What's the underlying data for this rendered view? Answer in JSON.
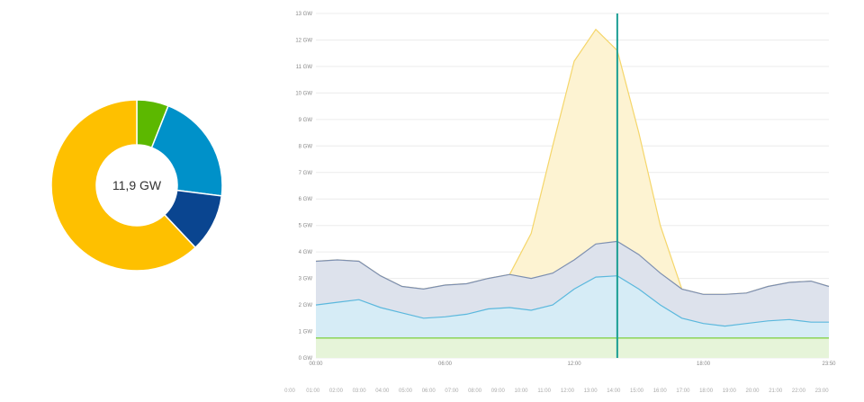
{
  "donut": {
    "total_label": "11,9 GW",
    "slices": [
      {
        "name": "green",
        "value": 6,
        "color": "#5cb800"
      },
      {
        "name": "blue",
        "value": 21,
        "color": "#0091c9"
      },
      {
        "name": "navy",
        "value": 11,
        "color": "#0a4590"
      },
      {
        "name": "yellow",
        "value": 62,
        "color": "#fec000"
      }
    ]
  },
  "chart_data": {
    "type": "area",
    "y_ticks": [
      "0 GW",
      "1 GW",
      "2 GW",
      "3 GW",
      "4 GW",
      "5 GW",
      "6 GW",
      "7 GW",
      "8 GW",
      "9 GW",
      "10 GW",
      "11 GW",
      "12 GW",
      "13 GW"
    ],
    "ylim": [
      0,
      13
    ],
    "x_ticks": [
      "00:00",
      "06:00",
      "12:00",
      "18:00",
      "23:50"
    ],
    "x_hours": [
      0,
      1,
      2,
      3,
      4,
      5,
      6,
      7,
      8,
      9,
      10,
      11,
      12,
      13,
      14,
      15,
      16,
      17,
      18,
      19,
      20,
      21,
      22,
      23,
      23.83
    ],
    "cursor_hour": 14,
    "series": [
      {
        "name": "green",
        "color": "#7ccf3a",
        "fill": "#e6f4d9",
        "values": [
          0.75,
          0.75,
          0.75,
          0.75,
          0.75,
          0.75,
          0.75,
          0.75,
          0.75,
          0.75,
          0.75,
          0.75,
          0.75,
          0.75,
          0.75,
          0.75,
          0.75,
          0.75,
          0.75,
          0.75,
          0.75,
          0.75,
          0.75,
          0.75,
          0.75
        ]
      },
      {
        "name": "blue",
        "color": "#5bb8dd",
        "fill": "#d6ecf6",
        "values": [
          2.0,
          2.1,
          2.2,
          1.9,
          1.7,
          1.5,
          1.55,
          1.65,
          1.85,
          1.9,
          1.8,
          2.0,
          2.6,
          3.05,
          3.1,
          2.6,
          2.0,
          1.5,
          1.3,
          1.2,
          1.3,
          1.4,
          1.45,
          1.35,
          1.35
        ]
      },
      {
        "name": "navy",
        "color": "#7d8fb0",
        "fill": "#dde2ec",
        "values": [
          3.65,
          3.7,
          3.65,
          3.1,
          2.7,
          2.6,
          2.75,
          2.8,
          3.0,
          3.15,
          3.0,
          3.2,
          3.7,
          4.3,
          4.4,
          3.9,
          3.2,
          2.6,
          2.4,
          2.4,
          2.45,
          2.7,
          2.85,
          2.9,
          2.7
        ]
      },
      {
        "name": "yellow",
        "color": "#f5d66a",
        "fill": "#fdf3d2",
        "values": [
          3.65,
          3.7,
          3.65,
          3.1,
          2.7,
          2.6,
          2.75,
          2.8,
          3.0,
          3.15,
          4.7,
          8.0,
          11.2,
          12.4,
          11.6,
          8.5,
          5.0,
          2.6,
          2.4,
          2.4,
          2.45,
          2.7,
          2.85,
          2.9,
          2.7
        ]
      }
    ]
  },
  "timeline": [
    "0:00",
    "01:00",
    "02:00",
    "03:00",
    "04:00",
    "05:00",
    "06:00",
    "07:00",
    "08:00",
    "09:00",
    "10:00",
    "11:00",
    "12:00",
    "13:00",
    "14:00",
    "15:00",
    "16:00",
    "17:00",
    "18:00",
    "19:00",
    "20:00",
    "21:00",
    "22:00",
    "23:00"
  ]
}
